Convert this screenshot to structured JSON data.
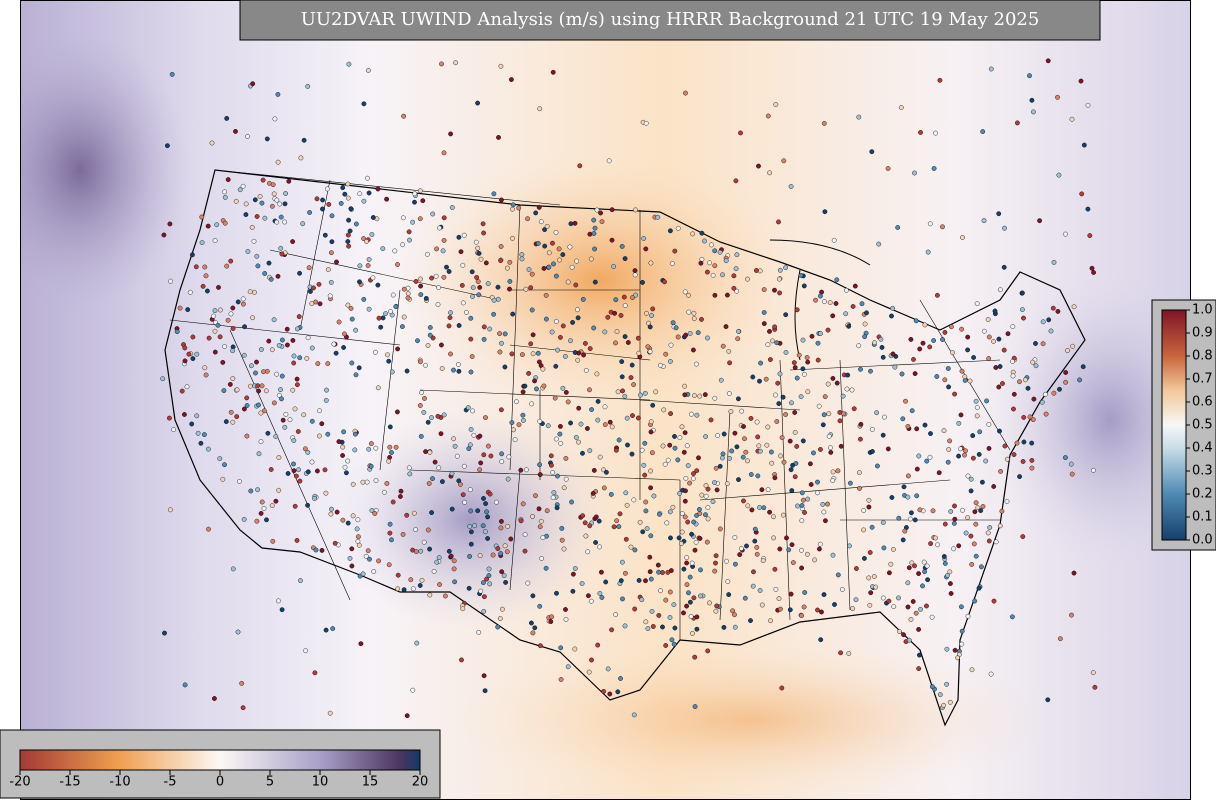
{
  "map": {
    "title": "UU2DVAR UWIND Analysis (m/s) using HRRR Background 21 UTC 19 May 2025",
    "colorbar": {
      "lim": [
        -20,
        20
      ],
      "ticks": [
        -20,
        -15,
        -10,
        -5,
        0,
        5,
        10,
        15,
        20
      ]
    },
    "obs_colorbar": {
      "lim": [
        0,
        1
      ],
      "ticks": [
        {
          "value": 0,
          "label": "0.0"
        },
        {
          "value": 0.1,
          "label": "0.1"
        },
        {
          "value": 0.2,
          "label": "0.2"
        },
        {
          "value": 0.3,
          "label": "0.3"
        },
        {
          "value": 0.4,
          "label": "0.4"
        },
        {
          "value": 0.5,
          "label": "0.5"
        },
        {
          "value": 0.6,
          "label": "0.6"
        },
        {
          "value": 0.7,
          "label": "0.7"
        },
        {
          "value": 0.8,
          "label": "0.8"
        },
        {
          "value": 0.9,
          "label": "0.9"
        },
        {
          "value": 1,
          "label": "1.0"
        }
      ]
    }
  }
}
